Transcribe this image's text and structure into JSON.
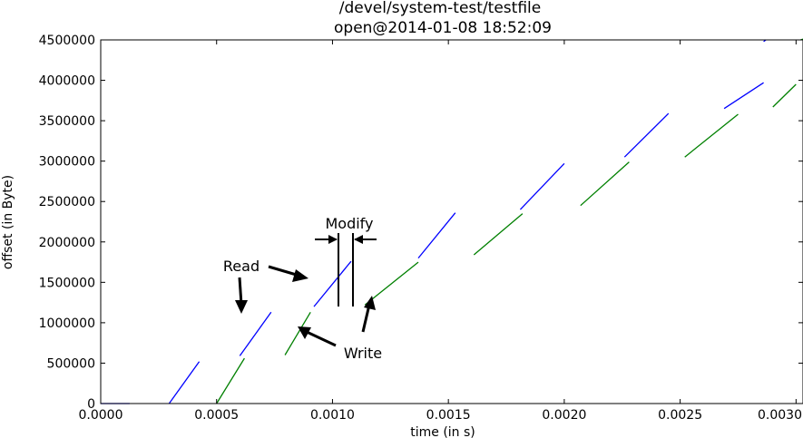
{
  "chart_data": {
    "type": "line",
    "title": "/devel/system-test/testfile",
    "subtitle": "open@2014-01-08 18:52:09",
    "xlabel": "time (in s)",
    "ylabel": "offset (in Byte)",
    "xlim": [
      0.0,
      0.00303
    ],
    "ylim": [
      0,
      4500000
    ],
    "xticks": [
      "0.0000",
      "0.0005",
      "0.0010",
      "0.0015",
      "0.0020",
      "0.0025",
      "0.0030"
    ],
    "xtick_values": [
      0.0,
      0.0005,
      0.001,
      0.0015,
      0.002,
      0.0025,
      0.003
    ],
    "yticks": [
      "0",
      "500000",
      "1000000",
      "1500000",
      "2000000",
      "2500000",
      "3000000",
      "3500000",
      "4000000",
      "4500000"
    ],
    "ytick_values": [
      0,
      500000,
      1000000,
      1500000,
      2000000,
      2500000,
      3000000,
      3500000,
      4000000,
      4500000
    ],
    "grid": false,
    "series": [
      {
        "color": "#0000ff",
        "segments": [
          [
            [
              0.0,
              0
            ],
            [
              0.000125,
              0
            ]
          ],
          [
            [
              0.000295,
              0
            ],
            [
              0.000425,
              520000
            ]
          ],
          [
            [
              0.0006,
              590000
            ],
            [
              0.000735,
              1130000
            ]
          ],
          [
            [
              0.00092,
              1200000
            ],
            [
              0.00108,
              1760000
            ]
          ],
          [
            [
              0.00137,
              1800000
            ],
            [
              0.00153,
              2360000
            ]
          ],
          [
            [
              0.00181,
              2400000
            ],
            [
              0.002,
              2970000
            ]
          ],
          [
            [
              0.00226,
              3050000
            ],
            [
              0.00245,
              3590000
            ]
          ],
          [
            [
              0.00269,
              3650000
            ],
            [
              0.00286,
              3970000
            ]
          ],
          [
            [
              0.00286,
              4480000
            ],
            [
              0.00287,
              4500000
            ]
          ]
        ]
      },
      {
        "color": "#008000",
        "segments": [
          [
            [
              0.0005,
              0
            ],
            [
              0.00062,
              560000
            ]
          ],
          [
            [
              0.000795,
              600000
            ],
            [
              0.000905,
              1130000
            ]
          ],
          [
            [
              0.00114,
              1220000
            ],
            [
              0.00137,
              1750000
            ]
          ],
          [
            [
              0.00161,
              1840000
            ],
            [
              0.00182,
              2350000
            ]
          ],
          [
            [
              0.00207,
              2450000
            ],
            [
              0.00228,
              2990000
            ]
          ],
          [
            [
              0.00252,
              3050000
            ],
            [
              0.00275,
              3580000
            ]
          ],
          [
            [
              0.0029,
              3670000
            ],
            [
              0.003,
              3950000
            ]
          ],
          [
            [
              0.00302,
              4500000
            ],
            [
              0.00303,
              4510000
            ]
          ]
        ]
      }
    ],
    "annotations": [
      {
        "text": "Modify"
      },
      {
        "text": "Read"
      },
      {
        "text": "Write"
      }
    ]
  }
}
